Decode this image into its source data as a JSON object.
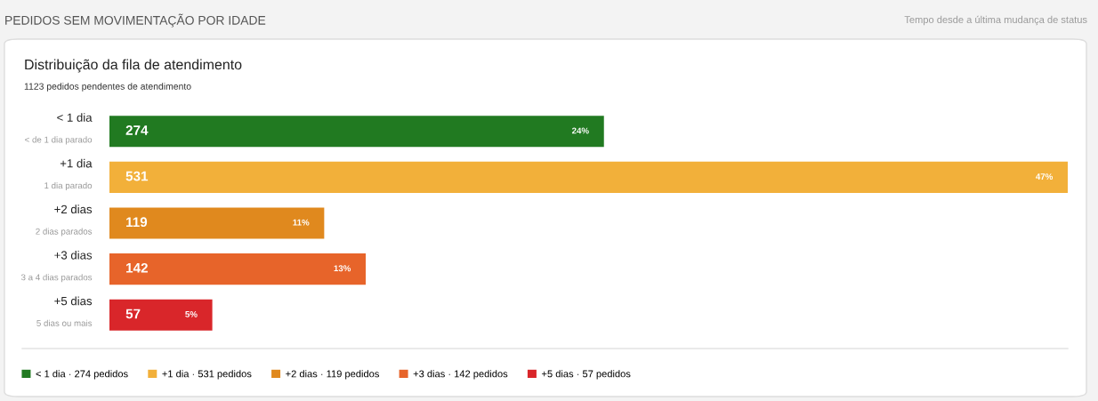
{
  "chart_data": {
    "type": "bar",
    "orientation": "horizontal",
    "stacked": true,
    "data_labels": true,
    "legend": "bottom left",
    "grid": false,
    "title": "PEDIDOS SEM MOVIMENTAÇÃO POR IDADE",
    "subtitle": "Distribuição da fila de atendimento",
    "categories": [
      "< 1 dia",
      "+1 dia",
      "+2 dias",
      "+3 dias",
      "+5 dias"
    ],
    "series": [
      {
        "name": "< 1 dia · 274 pedidos",
        "color": "#217a21",
        "values": [
          274,
          null,
          null,
          null,
          null
        ]
      },
      {
        "name": "+1 dia · 531 pedidos",
        "color": "#f2b03a",
        "values": [
          null,
          531,
          null,
          null,
          null
        ]
      },
      {
        "name": "+2 dias · 119 pedidos",
        "color": "#e0891e",
        "values": [
          null,
          null,
          119,
          null,
          null
        ]
      },
      {
        "name": "+3 dias · 142 pedidos",
        "color": "#e7642a",
        "values": [
          null,
          null,
          null,
          142,
          null
        ]
      },
      {
        "name": "+5 dias · 57 pedidos",
        "color": "#d9262a",
        "values": [
          null,
          null,
          null,
          null,
          57
        ]
      }
    ],
    "annotations": [
      "Tempo desde a última mudança de status",
      "1123 pedidos pendentes de atendimento",
      "< de 1 dia parado",
      "1 dia parado",
      "2 dias parados",
      "3 a 4 dias parados",
      "5 dias ou mais",
      {
        "text": "24%",
        "x": 274,
        "y": "< 1 dia"
      },
      {
        "text": "47%",
        "x": 531,
        "y": "+1 dia"
      },
      {
        "text": "11%",
        "x": 119,
        "y": "+2 dias"
      },
      {
        "text": "13%",
        "x": 142,
        "y": "+3 dias"
      },
      {
        "text": "5%",
        "x": 57,
        "y": "+5 dias"
      }
    ]
  }
}
